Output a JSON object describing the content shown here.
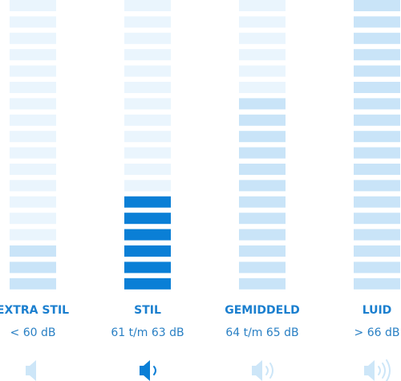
{
  "columns": [
    {
      "label": "EXTRA STIL",
      "range": "< 60 dB"
    },
    {
      "label": "STIL",
      "range": "61 t/m 63 dB"
    },
    {
      "label": "GEMIDDELD",
      "range": "64 t/m 65 dB"
    },
    {
      "label": "LUID",
      "range": "> 66 dB"
    }
  ]
}
